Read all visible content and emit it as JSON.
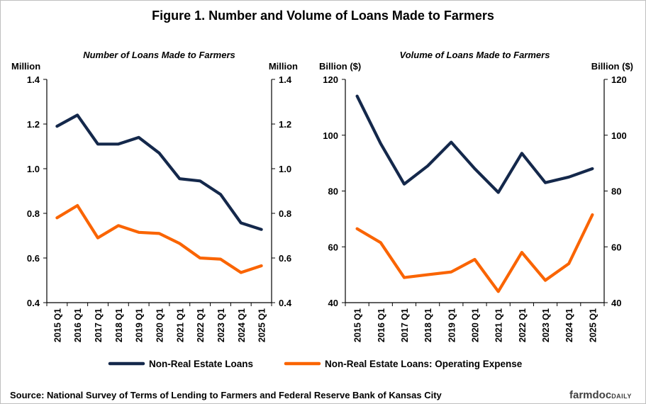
{
  "figure_title": "Figure 1. Number and Volume of Loans Made to Farmers",
  "source": "Source: National Survey of Terms of Lending to Farmers and Federal Reserve Bank of Kansas City",
  "logo": {
    "main": "farmdoc",
    "sub": "DAILY"
  },
  "colors": {
    "navy": "#14284b",
    "orange": "#fa6400"
  },
  "legend": [
    "Non-Real Estate Loans",
    "Non-Real Estate Loans: Operating Expense"
  ],
  "chart_data": [
    {
      "type": "line",
      "title": "Number of Loans Made to Farmers",
      "ylabel_left": "Million",
      "ylabel_right": "Million",
      "ylim": [
        0.4,
        1.4
      ],
      "yticks": [
        "0.4",
        "0.6",
        "0.8",
        "1.0",
        "1.2",
        "1.4"
      ],
      "categories": [
        "2015 Q1",
        "2016 Q1",
        "2017 Q1",
        "2018 Q1",
        "2019 Q1",
        "2020 Q1",
        "2021 Q1",
        "2022 Q1",
        "2023 Q1",
        "2024 Q1",
        "2025 Q1"
      ],
      "series": [
        {
          "name": "Non-Real Estate Loans",
          "color": "#14284b",
          "values": [
            1.19,
            1.24,
            1.11,
            1.11,
            1.14,
            1.07,
            0.955,
            0.945,
            0.885,
            0.757,
            0.728
          ]
        },
        {
          "name": "Non-Real Estate Loans: Operating Expense",
          "color": "#fa6400",
          "values": [
            0.78,
            0.835,
            0.69,
            0.745,
            0.715,
            0.71,
            0.665,
            0.6,
            0.595,
            0.535,
            0.565
          ]
        }
      ]
    },
    {
      "type": "line",
      "title": "Volume of Loans Made to Farmers",
      "ylabel_left": "Billion ($)",
      "ylabel_right": "Billion ($)",
      "ylim": [
        40,
        120
      ],
      "yticks": [
        "40",
        "60",
        "80",
        "100",
        "120"
      ],
      "categories": [
        "2015 Q1",
        "2016 Q1",
        "2017 Q1",
        "2018 Q1",
        "2019 Q1",
        "2020 Q1",
        "2021 Q1",
        "2022 Q1",
        "2023 Q1",
        "2024 Q1",
        "2025 Q1"
      ],
      "series": [
        {
          "name": "Non-Real Estate Loans",
          "color": "#14284b",
          "values": [
            114,
            97,
            82.5,
            89,
            97.5,
            88,
            79.5,
            93.5,
            83,
            85,
            88
          ]
        },
        {
          "name": "Non-Real Estate Loans: Operating Expense",
          "color": "#fa6400",
          "values": [
            66.5,
            61.5,
            49,
            50,
            51,
            55.5,
            44,
            58,
            48,
            54,
            71.5
          ]
        }
      ]
    }
  ]
}
